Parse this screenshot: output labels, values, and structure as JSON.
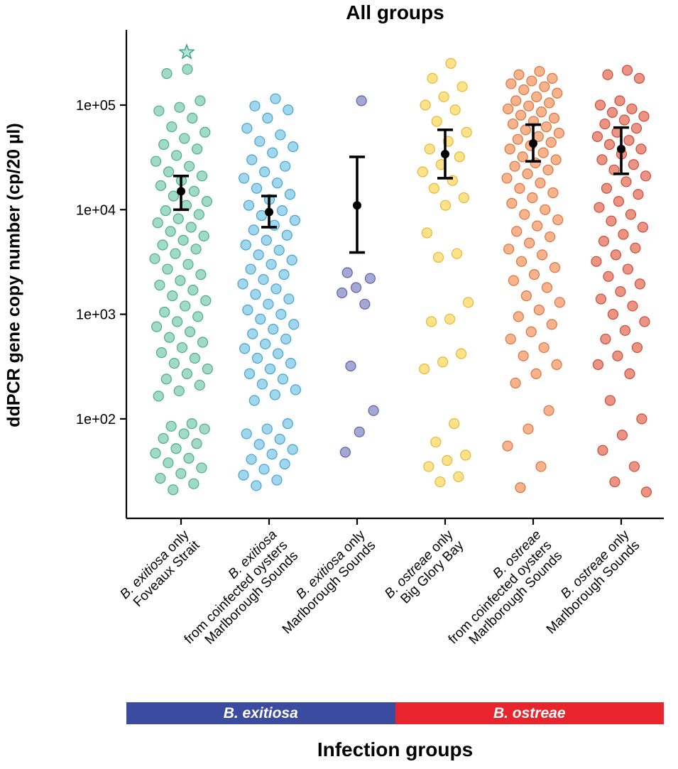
{
  "title": "All groups",
  "y_axis": {
    "label": "ddPCR gene copy number (cp/20 µl)",
    "tick_labels": [
      "1e+02",
      "1e+03",
      "1e+04",
      "1e+05"
    ],
    "tick_values": [
      100,
      1000,
      10000,
      100000
    ]
  },
  "x_axis": {
    "label": "Infection groups"
  },
  "species_bar": {
    "segments": [
      {
        "label": "B. exitiosa",
        "color": "#3A4BA0"
      },
      {
        "label": "B. ostreae",
        "color": "#E8252C"
      }
    ]
  },
  "chart_data": {
    "type": "scatter",
    "subtype": "jittered-strip-plot-with-mean-ci",
    "y_scale": "log",
    "ylim": [
      11,
      500000
    ],
    "grid": false,
    "title": "All groups",
    "ylabel": "ddPCR gene copy number (cp/20 µl)",
    "xlabel": "Infection groups",
    "groups": [
      {
        "name": "B. exitiosa only — Foveaux Strait",
        "color": "#6FC7A6",
        "stroke": "#35A084",
        "spread": 38,
        "label_lines": [
          [
            {
              "t": "B. exitiosa",
              "i": true
            },
            {
              "t": " only",
              "i": false
            }
          ],
          [
            {
              "t": "Foveaux Strait",
              "i": false
            }
          ]
        ],
        "mean": 15000,
        "ci": [
          10000,
          21000
        ],
        "values": [
          220000,
          200000,
          110000,
          95000,
          88000,
          75000,
          62000,
          55000,
          48000,
          42000,
          38000,
          33000,
          29000,
          26000,
          23000,
          21000,
          19000,
          17000,
          15000,
          13500,
          12000,
          11000,
          9800,
          9000,
          8200,
          7500,
          6800,
          6200,
          5600,
          5100,
          4600,
          4200,
          3800,
          3400,
          3000,
          2700,
          2400,
          2100,
          1900,
          1700,
          1500,
          1350,
          1200,
          1050,
          950,
          850,
          760,
          680,
          600,
          540,
          480,
          430,
          380,
          340,
          300,
          270,
          240,
          210,
          185,
          165,
          90,
          85,
          80,
          72,
          65,
          58,
          52,
          47,
          42,
          38,
          34,
          30,
          27,
          24,
          21
        ]
      },
      {
        "name": "B. exitiosa from coinfected oysters — Marlborough Sounds",
        "color": "#6EC1E4",
        "stroke": "#2E96C8",
        "spread": 38,
        "label_lines": [
          [
            {
              "t": "B. exitiosa",
              "i": true
            }
          ],
          [
            {
              "t": "from coinfected oysters",
              "i": false
            }
          ],
          [
            {
              "t": "Marlborough Sounds",
              "i": false
            }
          ]
        ],
        "mean": 9500,
        "ci": [
          6800,
          13500
        ],
        "values": [
          115000,
          98000,
          90000,
          75000,
          60000,
          52000,
          45000,
          40000,
          35000,
          30000,
          26000,
          23000,
          20000,
          18000,
          16000,
          14000,
          12500,
          11000,
          9800,
          8800,
          7900,
          7100,
          6400,
          5700,
          5100,
          4600,
          4100,
          3700,
          3300,
          3000,
          2700,
          2400,
          2150,
          1950,
          1750,
          1550,
          1400,
          1250,
          1100,
          1000,
          900,
          800,
          720,
          650,
          580,
          520,
          470,
          420,
          380,
          340,
          300,
          270,
          240,
          215,
          190,
          170,
          150,
          90,
          80,
          72,
          64,
          57,
          51,
          46,
          41,
          37,
          33,
          29,
          26,
          23
        ]
      },
      {
        "name": "B. exitiosa only — Marlborough Sounds",
        "color": "#7679BD",
        "stroke": "#4C50A2",
        "spread": 26,
        "label_lines": [
          [
            {
              "t": "B. exitiosa",
              "i": true
            },
            {
              "t": " only",
              "i": false
            }
          ],
          [
            {
              "t": "Marlborough Sounds",
              "i": false
            }
          ]
        ],
        "mean": 11000,
        "ci": [
          3900,
          32000
        ],
        "values": [
          110000,
          2500,
          2200,
          1800,
          1600,
          1250,
          320,
          120,
          75,
          48
        ]
      },
      {
        "name": "B. ostreae only — Big Glory Bay",
        "color": "#FBD44C",
        "stroke": "#E0AE22",
        "spread": 34,
        "label_lines": [
          [
            {
              "t": "B. ostreae",
              "i": true
            },
            {
              "t": " only",
              "i": false
            }
          ],
          [
            {
              "t": "Big Glory Bay",
              "i": false
            }
          ]
        ],
        "mean": 34000,
        "ci": [
          20000,
          58000
        ],
        "values": [
          250000,
          180000,
          150000,
          120000,
          100000,
          90000,
          70000,
          55000,
          45000,
          38000,
          32000,
          27000,
          23000,
          19000,
          16000,
          13000,
          11000,
          6000,
          3800,
          3500,
          1300,
          900,
          850,
          420,
          350,
          300,
          90,
          60,
          45,
          40,
          35,
          28,
          25
        ]
      },
      {
        "name": "B. ostreae from coinfected oysters — Marlborough Sounds",
        "color": "#F18A4E",
        "stroke": "#D4642A",
        "spread": 38,
        "label_lines": [
          [
            {
              "t": "B. ostreae",
              "i": true
            }
          ],
          [
            {
              "t": "from coinfected oysters",
              "i": false
            }
          ],
          [
            {
              "t": "Marlborough Sounds",
              "i": false
            }
          ]
        ],
        "mean": 43000,
        "ci": [
          29000,
          65000
        ],
        "values": [
          210000,
          195000,
          180000,
          170000,
          160000,
          150000,
          140000,
          130000,
          120000,
          110000,
          105000,
          98000,
          92000,
          86000,
          80000,
          75000,
          70000,
          66000,
          62000,
          58000,
          54000,
          50000,
          47000,
          44000,
          41000,
          38000,
          35000,
          32000,
          30000,
          28000,
          26000,
          24000,
          22000,
          20000,
          18000,
          16000,
          14500,
          13000,
          11500,
          10000,
          9000,
          8000,
          7000,
          6200,
          5500,
          4800,
          4200,
          3700,
          3200,
          2800,
          2400,
          2100,
          1800,
          1500,
          1300,
          1100,
          950,
          800,
          680,
          580,
          480,
          400,
          330,
          270,
          220,
          120,
          80,
          55,
          35,
          22
        ]
      },
      {
        "name": "B. ostreae only — Marlborough Sounds",
        "color": "#E25A41",
        "stroke": "#C13A26",
        "spread": 36,
        "label_lines": [
          [
            {
              "t": "B. ostreae",
              "i": true
            },
            {
              "t": " only",
              "i": false
            }
          ],
          [
            {
              "t": "Marlborough Sounds",
              "i": false
            }
          ]
        ],
        "mean": 38000,
        "ci": [
          22000,
          61000
        ],
        "values": [
          215000,
          195000,
          180000,
          110000,
          100000,
          92000,
          85000,
          78000,
          72000,
          66000,
          60000,
          55000,
          50000,
          46000,
          42000,
          38000,
          34000,
          30000,
          27000,
          24000,
          21000,
          18500,
          16000,
          14000,
          12000,
          10500,
          9000,
          7800,
          6800,
          5800,
          5000,
          4300,
          3700,
          3200,
          2700,
          2300,
          1950,
          1650,
          1400,
          1200,
          1000,
          850,
          700,
          580,
          480,
          400,
          330,
          270,
          150,
          100,
          70,
          50,
          35,
          25,
          20
        ]
      }
    ],
    "star": {
      "group": 0,
      "value": 320000,
      "dx": 8
    }
  }
}
